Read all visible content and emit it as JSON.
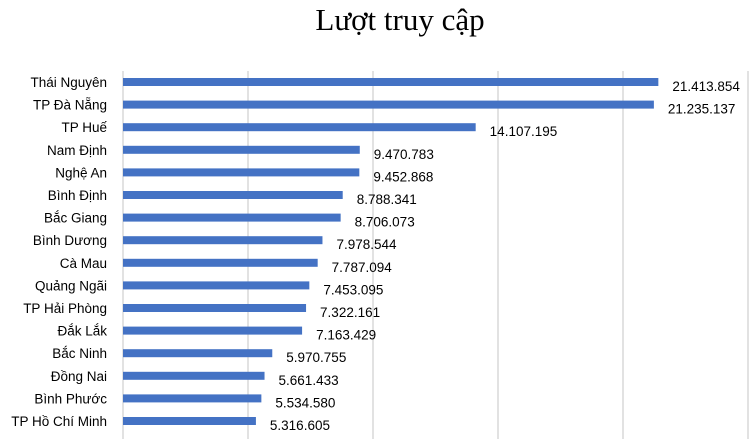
{
  "chart_data": {
    "type": "bar",
    "orientation": "horizontal",
    "title": "Lượt truy cập",
    "xlabel": "",
    "ylabel": "",
    "xlim": [
      0,
      25000000
    ],
    "grid": true,
    "grid_step": 5000000,
    "bar_color": "#4472C4",
    "categories": [
      "Thái Nguyên",
      "TP Đà Nẵng",
      "TP Huế",
      "Nam Định",
      "Nghệ An",
      "Bình Định",
      "Bắc Giang",
      "Bình Dương",
      "Cà Mau",
      "Quảng Ngãi",
      "TP Hải Phòng",
      "Đắk Lắk",
      "Bắc Ninh",
      "Đồng Nai",
      "Bình Phước",
      "TP Hồ Chí Minh"
    ],
    "values": [
      21413854,
      21235137,
      14107195,
      9470783,
      9452868,
      8788341,
      8706073,
      7978544,
      7787094,
      7453095,
      7322161,
      7163429,
      5970755,
      5661433,
      5534580,
      5316605
    ],
    "value_labels": [
      "21.413.854",
      "21.235.137",
      "14.107.195",
      "9.470.783",
      "9.452.868",
      "8.788.341",
      "8.706.073",
      "7.978.544",
      "7.787.094",
      "7.453.095",
      "7.322.161",
      "7.163.429",
      "5.970.755",
      "5.661.433",
      "5.534.580",
      "5.316.605"
    ]
  }
}
